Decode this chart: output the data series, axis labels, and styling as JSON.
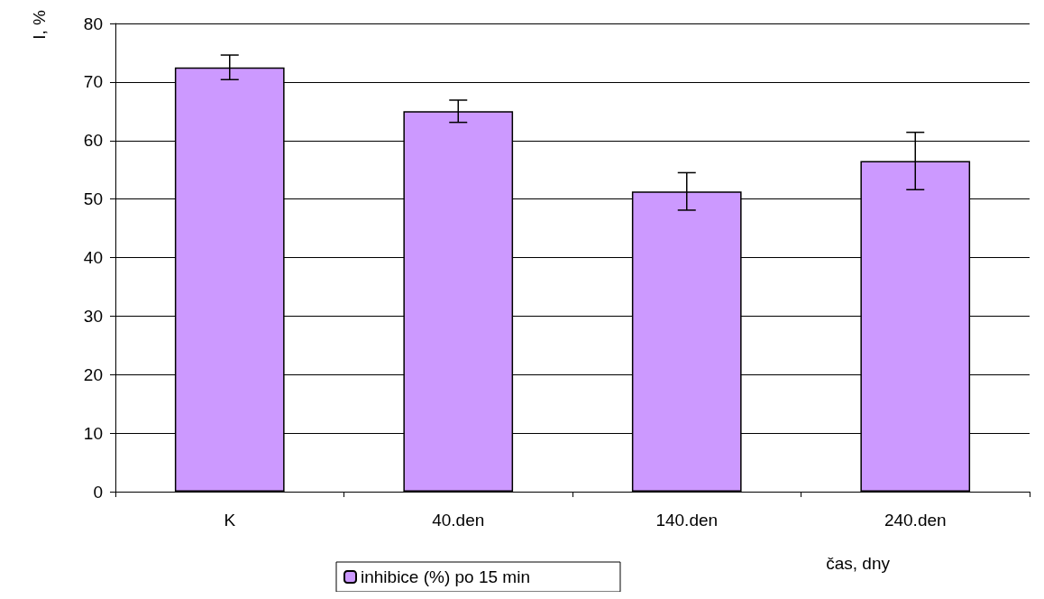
{
  "chart_data": {
    "type": "bar",
    "xlabel": "čas, dny",
    "ylabel": "I, %",
    "categories": [
      "K",
      "40.den",
      "140.den",
      "240.den"
    ],
    "series": [
      {
        "name": "inhibice (%) po 15 min",
        "color": "#cc99ff",
        "values": [
          72.5,
          65.0,
          51.3,
          56.5
        ],
        "errors": [
          2.1,
          1.9,
          3.2,
          4.9
        ]
      }
    ],
    "ylim": [
      0,
      80
    ],
    "yticks": [
      0,
      10,
      20,
      30,
      40,
      50,
      60,
      70,
      80
    ],
    "grid": "y",
    "legend": "bottom"
  }
}
